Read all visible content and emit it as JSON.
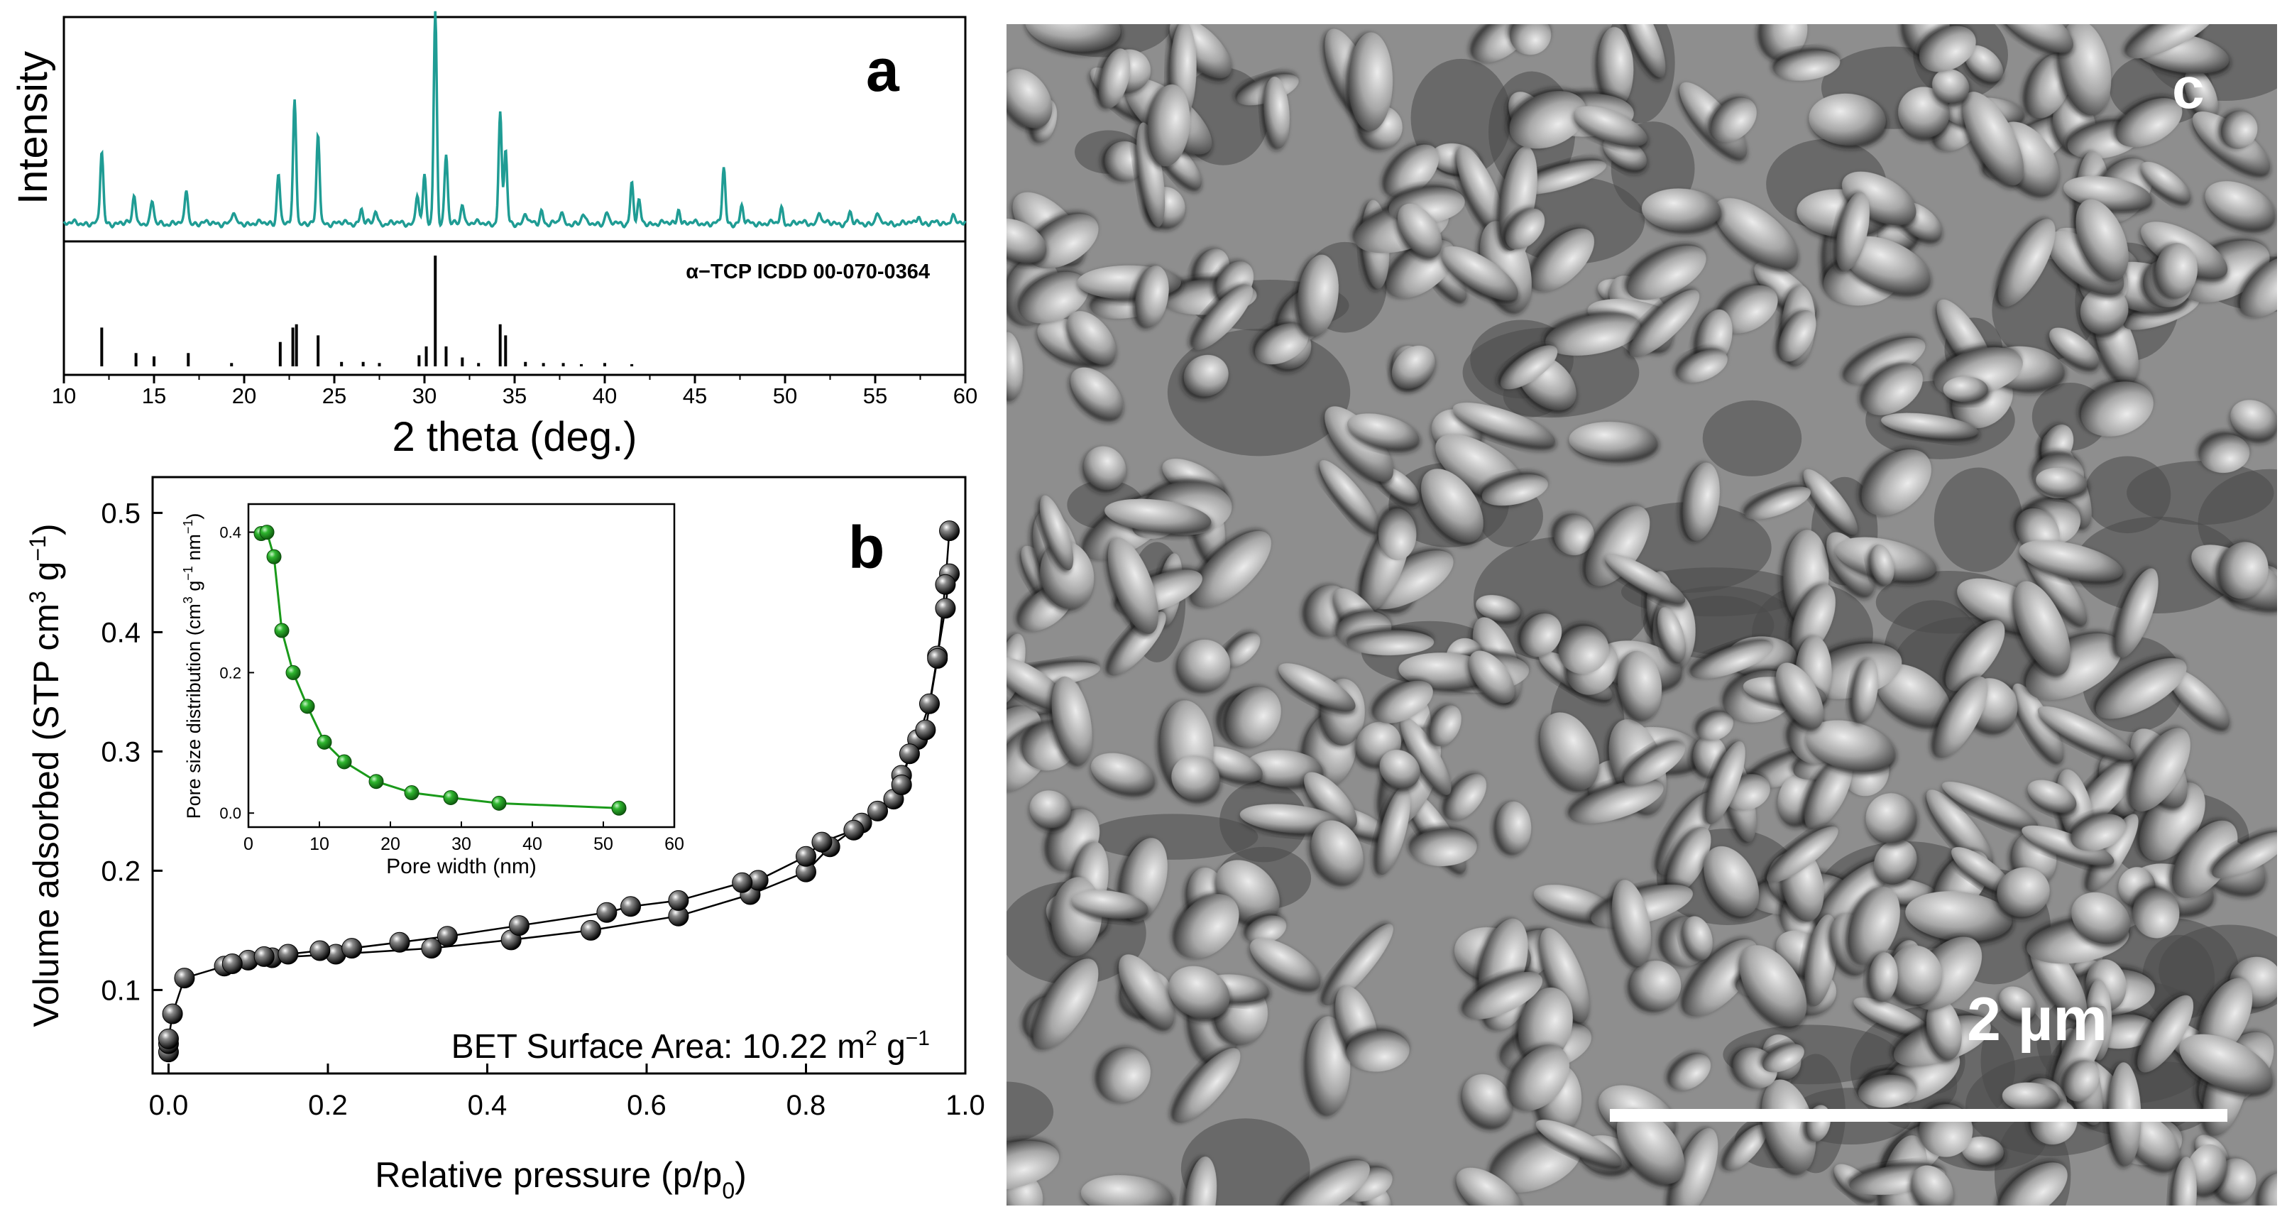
{
  "chart_data": [
    {
      "panel": "a",
      "type": "line",
      "panel_label": "a",
      "xlabel": "2 theta (deg.)",
      "ylabel": "Intensity",
      "xlim": [
        10,
        60
      ],
      "xticks": [
        10,
        15,
        20,
        25,
        30,
        35,
        40,
        45,
        50,
        55,
        60
      ],
      "series": [
        {
          "color": "#1f9c94",
          "peaks": [
            {
              "x": 12.1,
              "y": 0.34
            },
            {
              "x": 13.9,
              "y": 0.14
            },
            {
              "x": 14.9,
              "y": 0.1
            },
            {
              "x": 16.8,
              "y": 0.16
            },
            {
              "x": 19.4,
              "y": 0.05
            },
            {
              "x": 21.9,
              "y": 0.24
            },
            {
              "x": 22.8,
              "y": 0.58
            },
            {
              "x": 24.1,
              "y": 0.42
            },
            {
              "x": 26.5,
              "y": 0.07
            },
            {
              "x": 27.3,
              "y": 0.06
            },
            {
              "x": 29.6,
              "y": 0.14
            },
            {
              "x": 30.0,
              "y": 0.22
            },
            {
              "x": 30.6,
              "y": 1.0
            },
            {
              "x": 31.2,
              "y": 0.32
            },
            {
              "x": 32.1,
              "y": 0.1
            },
            {
              "x": 34.2,
              "y": 0.51
            },
            {
              "x": 34.5,
              "y": 0.34
            },
            {
              "x": 35.6,
              "y": 0.05
            },
            {
              "x": 36.5,
              "y": 0.06
            },
            {
              "x": 37.6,
              "y": 0.05
            },
            {
              "x": 38.8,
              "y": 0.04
            },
            {
              "x": 40.1,
              "y": 0.05
            },
            {
              "x": 41.5,
              "y": 0.19
            },
            {
              "x": 41.9,
              "y": 0.1
            },
            {
              "x": 44.1,
              "y": 0.07
            },
            {
              "x": 46.6,
              "y": 0.26
            },
            {
              "x": 47.6,
              "y": 0.08
            },
            {
              "x": 49.8,
              "y": 0.07
            },
            {
              "x": 51.9,
              "y": 0.06
            },
            {
              "x": 53.6,
              "y": 0.05
            },
            {
              "x": 55.1,
              "y": 0.05
            },
            {
              "x": 57.4,
              "y": 0.04
            },
            {
              "x": 59.3,
              "y": 0.05
            }
          ]
        }
      ],
      "reference": {
        "label": "α−TCP ICDD 00-070-0364",
        "sticks": [
          {
            "x": 12.1,
            "y": 0.35
          },
          {
            "x": 14.0,
            "y": 0.12
          },
          {
            "x": 15.0,
            "y": 0.09
          },
          {
            "x": 16.9,
            "y": 0.12
          },
          {
            "x": 19.3,
            "y": 0.03
          },
          {
            "x": 22.0,
            "y": 0.22
          },
          {
            "x": 22.7,
            "y": 0.35
          },
          {
            "x": 22.9,
            "y": 0.38
          },
          {
            "x": 24.1,
            "y": 0.28
          },
          {
            "x": 25.4,
            "y": 0.04
          },
          {
            "x": 26.6,
            "y": 0.04
          },
          {
            "x": 27.5,
            "y": 0.03
          },
          {
            "x": 29.7,
            "y": 0.1
          },
          {
            "x": 30.1,
            "y": 0.18
          },
          {
            "x": 30.6,
            "y": 1.0
          },
          {
            "x": 31.2,
            "y": 0.18
          },
          {
            "x": 32.1,
            "y": 0.08
          },
          {
            "x": 33.0,
            "y": 0.03
          },
          {
            "x": 34.2,
            "y": 0.38
          },
          {
            "x": 34.5,
            "y": 0.28
          },
          {
            "x": 35.6,
            "y": 0.04
          },
          {
            "x": 36.6,
            "y": 0.03
          },
          {
            "x": 37.7,
            "y": 0.03
          },
          {
            "x": 38.7,
            "y": 0.02
          },
          {
            "x": 40.0,
            "y": 0.03
          },
          {
            "x": 41.5,
            "y": 0.02
          }
        ]
      }
    },
    {
      "panel": "b",
      "type": "scatter",
      "panel_label": "b",
      "xlabel": "Relative pressure (p/p",
      "xlabel_sub": "0",
      "xlabel_end": ")",
      "ylabel": "Volume adsorbed (STP cm",
      "ylabel_sup1": "3",
      "ylabel_mid": " g",
      "ylabel_sup2": "−1",
      "ylabel_end": ")",
      "xlim": [
        -0.02,
        1.0
      ],
      "ylim": [
        0.03,
        0.53
      ],
      "xticks": [
        "0.0",
        "0.2",
        "0.4",
        "0.6",
        "0.8",
        "1.0"
      ],
      "yticks": [
        "0.1",
        "0.2",
        "0.3",
        "0.4",
        "0.5"
      ],
      "annotation": "BET Surface Area: 10.22 m",
      "annotation_sup1": "2",
      "annotation_mid": " g",
      "annotation_sup2": "−1",
      "series": [
        {
          "branch": "adsorption",
          "color": "#000000",
          "points": [
            [
              0.0,
              0.048
            ],
            [
              0.0,
              0.055
            ],
            [
              0.0,
              0.059
            ],
            [
              0.005,
              0.08
            ],
            [
              0.02,
              0.11
            ],
            [
              0.07,
              0.12
            ],
            [
              0.1,
              0.125
            ],
            [
              0.13,
              0.127
            ],
            [
              0.21,
              0.13
            ],
            [
              0.33,
              0.135
            ],
            [
              0.43,
              0.142
            ],
            [
              0.53,
              0.15
            ],
            [
              0.64,
              0.162
            ],
            [
              0.73,
              0.18
            ],
            [
              0.8,
              0.199
            ],
            [
              0.83,
              0.22
            ],
            [
              0.87,
              0.24
            ],
            [
              0.91,
              0.26
            ],
            [
              0.92,
              0.28
            ],
            [
              0.94,
              0.31
            ],
            [
              0.955,
              0.34
            ],
            [
              0.965,
              0.38
            ],
            [
              0.975,
              0.42
            ],
            [
              0.98,
              0.449
            ]
          ]
        },
        {
          "branch": "desorption",
          "color": "#000000",
          "points": [
            [
              0.98,
              0.485
            ],
            [
              0.975,
              0.44
            ],
            [
              0.965,
              0.378
            ],
            [
              0.95,
              0.318
            ],
            [
              0.93,
              0.298
            ],
            [
              0.92,
              0.272
            ],
            [
              0.89,
              0.25
            ],
            [
              0.86,
              0.234
            ],
            [
              0.82,
              0.224
            ],
            [
              0.8,
              0.212
            ],
            [
              0.74,
              0.192
            ],
            [
              0.72,
              0.19
            ],
            [
              0.64,
              0.175
            ],
            [
              0.58,
              0.17
            ],
            [
              0.55,
              0.165
            ],
            [
              0.44,
              0.154
            ],
            [
              0.35,
              0.145
            ],
            [
              0.29,
              0.14
            ],
            [
              0.23,
              0.135
            ],
            [
              0.19,
              0.133
            ],
            [
              0.15,
              0.13
            ],
            [
              0.12,
              0.128
            ],
            [
              0.08,
              0.122
            ]
          ]
        }
      ],
      "inset": {
        "type": "line",
        "xlabel": "Pore width (nm)",
        "ylabel": "Pore size distribution (cm",
        "ylabel_sup1": "3",
        "ylabel_mid": " g",
        "ylabel_sup2": "−1",
        "ylabel_mid2": " nm",
        "ylabel_sup3": "−1",
        "ylabel_end": ")",
        "xlim": [
          0,
          60
        ],
        "ylim": [
          -0.02,
          0.44
        ],
        "xticks": [
          "0",
          "10",
          "20",
          "30",
          "40",
          "50",
          "60"
        ],
        "yticks": [
          "0.0",
          "0.2",
          "0.4"
        ],
        "color": "#1a9a1a",
        "points": [
          [
            1.8,
            0.398
          ],
          [
            2.6,
            0.4
          ],
          [
            3.6,
            0.365
          ],
          [
            4.7,
            0.26
          ],
          [
            6.3,
            0.2
          ],
          [
            8.3,
            0.152
          ],
          [
            10.7,
            0.101
          ],
          [
            13.5,
            0.073
          ],
          [
            18.0,
            0.045
          ],
          [
            23.0,
            0.029
          ],
          [
            28.5,
            0.022
          ],
          [
            35.3,
            0.014
          ],
          [
            52.2,
            0.007
          ]
        ]
      }
    },
    {
      "panel": "c",
      "type": "image",
      "panel_label": "c",
      "scale_bar_label": "2 µm",
      "background_color": "#8e8e8e"
    }
  ]
}
